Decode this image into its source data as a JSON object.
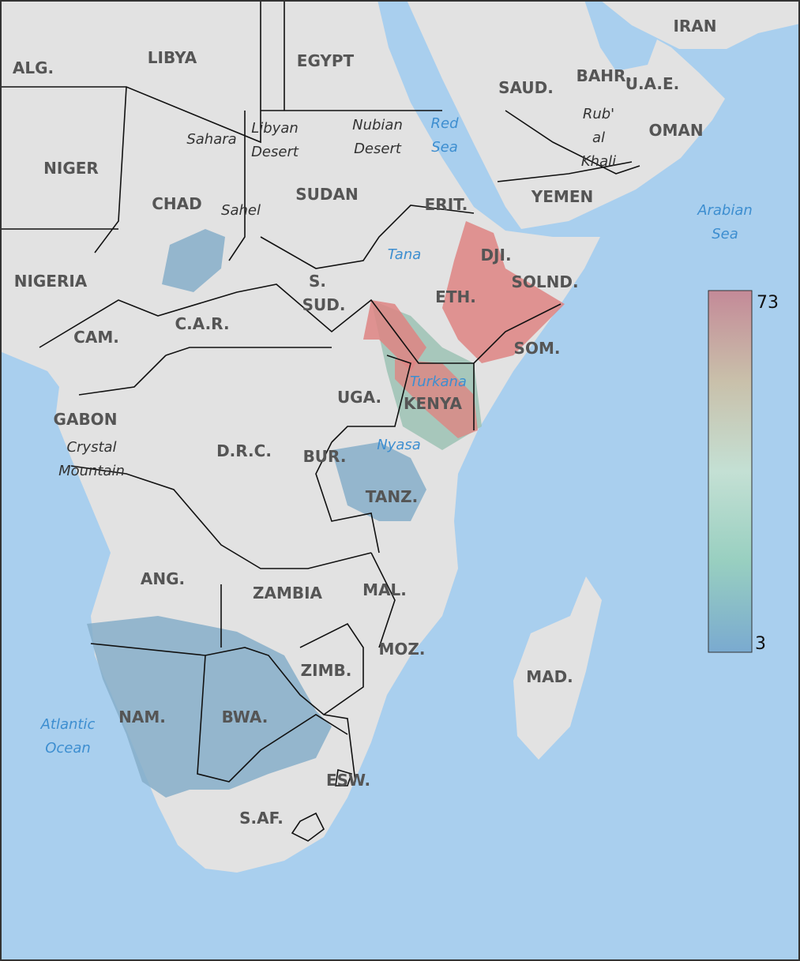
{
  "countries": [
    "ALG.",
    "LIBYA",
    "EGYPT",
    "BAHR.",
    "IRAN",
    "SAUD.",
    "U.A.E.",
    "OMAN",
    "NIGER",
    "CHAD",
    "SUDAN",
    "ERIT.",
    "YEMEN",
    "NIGERIA",
    "DJI.",
    "SOLND.",
    "S.",
    "SUD.",
    "ETH.",
    "C.A.R.",
    "CAM.",
    "SOM.",
    "UGA.",
    "KENYA",
    "GABON",
    "D.R.C.",
    "BUR.",
    "TANZ.",
    "ANG.",
    "ZAMBIA",
    "MAL.",
    "MOZ.",
    "ZIMB.",
    "MAD.",
    "NAM.",
    "BWA.",
    "ESW.",
    "S.AF."
  ],
  "regions": [
    {
      "lines": [
        "Sahara"
      ]
    },
    {
      "lines": [
        "Libyan",
        "Desert"
      ]
    },
    {
      "lines": [
        "Nubian",
        "Desert"
      ]
    },
    {
      "lines": [
        "Sahel"
      ]
    },
    {
      "lines": [
        "Rub'",
        "al",
        "Khali"
      ]
    },
    {
      "lines": [
        "Crystal",
        "Mountain"
      ]
    }
  ],
  "waters": [
    {
      "lines": [
        "Red",
        "Sea"
      ]
    },
    {
      "lines": [
        "Arabian",
        "Sea"
      ]
    },
    {
      "lines": [
        "Tana"
      ]
    },
    {
      "lines": [
        "Turkana"
      ]
    },
    {
      "lines": [
        "Nyasa"
      ]
    },
    {
      "lines": [
        "Atlantic",
        "Ocean"
      ]
    }
  ],
  "legend": {
    "max": 73,
    "min": 3,
    "colors": [
      "#c48a98",
      "#c9c0aa",
      "#c4e0d4",
      "#98cfc0",
      "#7aaad0"
    ]
  }
}
